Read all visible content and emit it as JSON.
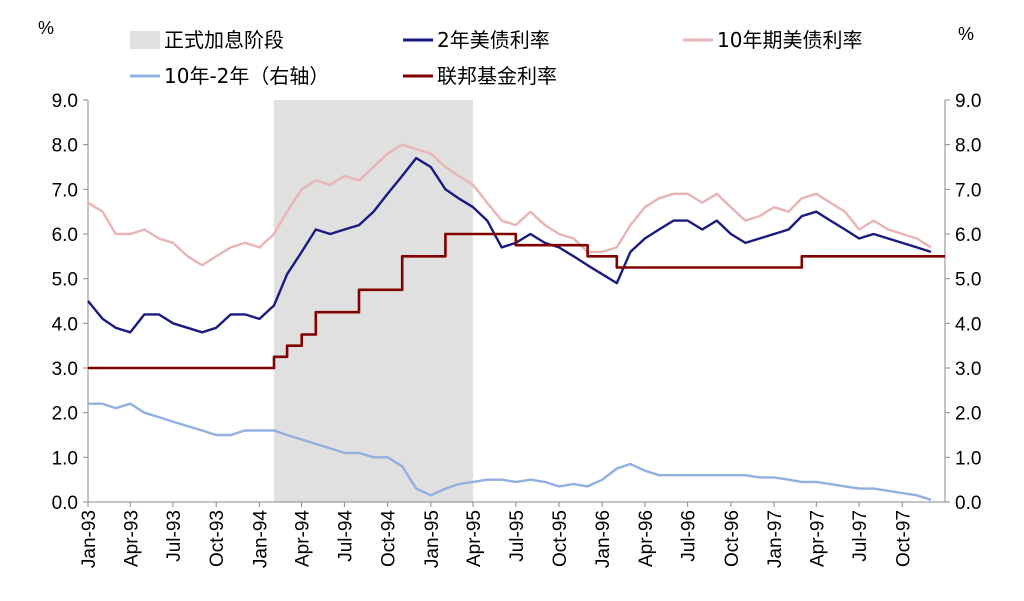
{
  "chart_data": {
    "type": "line",
    "units": {
      "left": "%",
      "right": "%"
    },
    "x_tick_labels": [
      "Jan-93",
      "Apr-93",
      "Jul-93",
      "Oct-93",
      "Jan-94",
      "Apr-94",
      "Jul-94",
      "Oct-94",
      "Jan-95",
      "Apr-95",
      "Jul-95",
      "Oct-95",
      "Jan-96",
      "Apr-96",
      "Jul-96",
      "Oct-96",
      "Jan-97",
      "Apr-97",
      "Jul-97",
      "Oct-97"
    ],
    "x_range": [
      "1993-01",
      "1997-12"
    ],
    "y_left": {
      "min": 0,
      "max": 9,
      "ticks": [
        "0.0",
        "1.0",
        "2.0",
        "3.0",
        "4.0",
        "5.0",
        "6.0",
        "7.0",
        "8.0",
        "9.0"
      ]
    },
    "y_right": {
      "min": 0,
      "max": 9,
      "ticks": [
        "0.0",
        "1.0",
        "2.0",
        "3.0",
        "4.0",
        "5.0",
        "6.0",
        "7.0",
        "8.0",
        "9.0"
      ]
    },
    "grid": false,
    "legend": {
      "placement": "top",
      "items": [
        {
          "name": "正式加息阶段",
          "kind": "band",
          "color": "#e0e0e0"
        },
        {
          "name": "2年美债利率",
          "kind": "line",
          "color": "#1a1a80"
        },
        {
          "name": "10年期美债利率",
          "kind": "line",
          "color": "#e8b4b4"
        },
        {
          "name": "10年-2年（右轴）",
          "kind": "line",
          "color": "#8fb0e0"
        },
        {
          "name": "联邦基金利率",
          "kind": "line",
          "color": "#800000"
        }
      ]
    },
    "shaded_regions": [
      {
        "name": "正式加息阶段",
        "start": "1994-02",
        "end": "1995-04"
      }
    ],
    "series": [
      {
        "name": "10年期美债利率",
        "axis": "left",
        "color": "#e8b4b4",
        "points": [
          [
            "1993-01",
            6.7
          ],
          [
            "1993-02",
            6.5
          ],
          [
            "1993-03",
            6.0
          ],
          [
            "1993-04",
            6.0
          ],
          [
            "1993-05",
            6.1
          ],
          [
            "1993-06",
            5.9
          ],
          [
            "1993-07",
            5.8
          ],
          [
            "1993-08",
            5.5
          ],
          [
            "1993-09",
            5.3
          ],
          [
            "1993-10",
            5.5
          ],
          [
            "1993-11",
            5.7
          ],
          [
            "1993-12",
            5.8
          ],
          [
            "1994-01",
            5.7
          ],
          [
            "1994-02",
            6.0
          ],
          [
            "1994-03",
            6.5
          ],
          [
            "1994-04",
            7.0
          ],
          [
            "1994-05",
            7.2
          ],
          [
            "1994-06",
            7.1
          ],
          [
            "1994-07",
            7.3
          ],
          [
            "1994-08",
            7.2
          ],
          [
            "1994-09",
            7.5
          ],
          [
            "1994-10",
            7.8
          ],
          [
            "1994-11",
            8.0
          ],
          [
            "1994-12",
            7.9
          ],
          [
            "1995-01",
            7.8
          ],
          [
            "1995-02",
            7.5
          ],
          [
            "1995-03",
            7.3
          ],
          [
            "1995-04",
            7.1
          ],
          [
            "1995-05",
            6.7
          ],
          [
            "1995-06",
            6.3
          ],
          [
            "1995-07",
            6.2
          ],
          [
            "1995-08",
            6.5
          ],
          [
            "1995-09",
            6.2
          ],
          [
            "1995-10",
            6.0
          ],
          [
            "1995-11",
            5.9
          ],
          [
            "1995-12",
            5.6
          ],
          [
            "1996-01",
            5.6
          ],
          [
            "1996-02",
            5.7
          ],
          [
            "1996-03",
            6.2
          ],
          [
            "1996-04",
            6.6
          ],
          [
            "1996-05",
            6.8
          ],
          [
            "1996-06",
            6.9
          ],
          [
            "1996-07",
            6.9
          ],
          [
            "1996-08",
            6.7
          ],
          [
            "1996-09",
            6.9
          ],
          [
            "1996-10",
            6.6
          ],
          [
            "1996-11",
            6.3
          ],
          [
            "1996-12",
            6.4
          ],
          [
            "1997-01",
            6.6
          ],
          [
            "1997-02",
            6.5
          ],
          [
            "1997-03",
            6.8
          ],
          [
            "1997-04",
            6.9
          ],
          [
            "1997-05",
            6.7
          ],
          [
            "1997-06",
            6.5
          ],
          [
            "1997-07",
            6.1
          ],
          [
            "1997-08",
            6.3
          ],
          [
            "1997-09",
            6.1
          ],
          [
            "1997-10",
            6.0
          ],
          [
            "1997-11",
            5.9
          ],
          [
            "1997-12",
            5.7
          ]
        ]
      },
      {
        "name": "2年美债利率",
        "axis": "left",
        "color": "#1a1a80",
        "points": [
          [
            "1993-01",
            4.5
          ],
          [
            "1993-02",
            4.1
          ],
          [
            "1993-03",
            3.9
          ],
          [
            "1993-04",
            3.8
          ],
          [
            "1993-05",
            4.2
          ],
          [
            "1993-06",
            4.2
          ],
          [
            "1993-07",
            4.0
          ],
          [
            "1993-08",
            3.9
          ],
          [
            "1993-09",
            3.8
          ],
          [
            "1993-10",
            3.9
          ],
          [
            "1993-11",
            4.2
          ],
          [
            "1993-12",
            4.2
          ],
          [
            "1994-01",
            4.1
          ],
          [
            "1994-02",
            4.4
          ],
          [
            "1994-03",
            5.1
          ],
          [
            "1994-04",
            5.6
          ],
          [
            "1994-05",
            6.1
          ],
          [
            "1994-06",
            6.0
          ],
          [
            "1994-07",
            6.1
          ],
          [
            "1994-08",
            6.2
          ],
          [
            "1994-09",
            6.5
          ],
          [
            "1994-10",
            6.9
          ],
          [
            "1994-11",
            7.3
          ],
          [
            "1994-12",
            7.7
          ],
          [
            "1995-01",
            7.5
          ],
          [
            "1995-02",
            7.0
          ],
          [
            "1995-03",
            6.8
          ],
          [
            "1995-04",
            6.6
          ],
          [
            "1995-05",
            6.3
          ],
          [
            "1995-06",
            5.7
          ],
          [
            "1995-07",
            5.8
          ],
          [
            "1995-08",
            6.0
          ],
          [
            "1995-09",
            5.8
          ],
          [
            "1995-10",
            5.7
          ],
          [
            "1995-11",
            5.5
          ],
          [
            "1995-12",
            5.3
          ],
          [
            "1996-01",
            5.1
          ],
          [
            "1996-02",
            4.9
          ],
          [
            "1996-03",
            5.6
          ],
          [
            "1996-04",
            5.9
          ],
          [
            "1996-05",
            6.1
          ],
          [
            "1996-06",
            6.3
          ],
          [
            "1996-07",
            6.3
          ],
          [
            "1996-08",
            6.1
          ],
          [
            "1996-09",
            6.3
          ],
          [
            "1996-10",
            6.0
          ],
          [
            "1996-11",
            5.8
          ],
          [
            "1996-12",
            5.9
          ],
          [
            "1997-01",
            6.0
          ],
          [
            "1997-02",
            6.1
          ],
          [
            "1997-03",
            6.4
          ],
          [
            "1997-04",
            6.5
          ],
          [
            "1997-05",
            6.3
          ],
          [
            "1997-06",
            6.1
          ],
          [
            "1997-07",
            5.9
          ],
          [
            "1997-08",
            6.0
          ],
          [
            "1997-09",
            5.9
          ],
          [
            "1997-10",
            5.8
          ],
          [
            "1997-11",
            5.7
          ],
          [
            "1997-12",
            5.6
          ]
        ]
      },
      {
        "name": "10年-2年（右轴）",
        "axis": "right",
        "color": "#8fb0e0",
        "points": [
          [
            "1993-01",
            2.2
          ],
          [
            "1993-02",
            2.2
          ],
          [
            "1993-03",
            2.1
          ],
          [
            "1993-04",
            2.2
          ],
          [
            "1993-05",
            2.0
          ],
          [
            "1993-06",
            1.9
          ],
          [
            "1993-07",
            1.8
          ],
          [
            "1993-08",
            1.7
          ],
          [
            "1993-09",
            1.6
          ],
          [
            "1993-10",
            1.5
          ],
          [
            "1993-11",
            1.5
          ],
          [
            "1993-12",
            1.6
          ],
          [
            "1994-01",
            1.6
          ],
          [
            "1994-02",
            1.6
          ],
          [
            "1994-03",
            1.5
          ],
          [
            "1994-04",
            1.4
          ],
          [
            "1994-05",
            1.3
          ],
          [
            "1994-06",
            1.2
          ],
          [
            "1994-07",
            1.1
          ],
          [
            "1994-08",
            1.1
          ],
          [
            "1994-09",
            1.0
          ],
          [
            "1994-10",
            1.0
          ],
          [
            "1994-11",
            0.8
          ],
          [
            "1994-12",
            0.3
          ],
          [
            "1995-01",
            0.15
          ],
          [
            "1995-02",
            0.3
          ],
          [
            "1995-03",
            0.4
          ],
          [
            "1995-04",
            0.45
          ],
          [
            "1995-05",
            0.5
          ],
          [
            "1995-06",
            0.5
          ],
          [
            "1995-07",
            0.45
          ],
          [
            "1995-08",
            0.5
          ],
          [
            "1995-09",
            0.45
          ],
          [
            "1995-10",
            0.35
          ],
          [
            "1995-11",
            0.4
          ],
          [
            "1995-12",
            0.35
          ],
          [
            "1996-01",
            0.5
          ],
          [
            "1996-02",
            0.75
          ],
          [
            "1996-03",
            0.85
          ],
          [
            "1996-04",
            0.7
          ],
          [
            "1996-05",
            0.6
          ],
          [
            "1996-06",
            0.6
          ],
          [
            "1996-07",
            0.6
          ],
          [
            "1996-08",
            0.6
          ],
          [
            "1996-09",
            0.6
          ],
          [
            "1996-10",
            0.6
          ],
          [
            "1996-11",
            0.6
          ],
          [
            "1996-12",
            0.55
          ],
          [
            "1997-01",
            0.55
          ],
          [
            "1997-02",
            0.5
          ],
          [
            "1997-03",
            0.45
          ],
          [
            "1997-04",
            0.45
          ],
          [
            "1997-05",
            0.4
          ],
          [
            "1997-06",
            0.35
          ],
          [
            "1997-07",
            0.3
          ],
          [
            "1997-08",
            0.3
          ],
          [
            "1997-09",
            0.25
          ],
          [
            "1997-10",
            0.2
          ],
          [
            "1997-11",
            0.15
          ],
          [
            "1997-12",
            0.05
          ]
        ]
      },
      {
        "name": "联邦基金利率",
        "axis": "left",
        "color": "#800000",
        "step": true,
        "points": [
          [
            "1993-01",
            3.0
          ],
          [
            "1994-02",
            3.25
          ],
          [
            "1994-03",
            3.5
          ],
          [
            "1994-04",
            3.75
          ],
          [
            "1994-05",
            4.25
          ],
          [
            "1994-08",
            4.75
          ],
          [
            "1994-11",
            5.5
          ],
          [
            "1995-02",
            6.0
          ],
          [
            "1995-07",
            5.75
          ],
          [
            "1995-12",
            5.5
          ],
          [
            "1996-02",
            5.25
          ],
          [
            "1997-03",
            5.5
          ],
          [
            "1997-12",
            5.5
          ]
        ]
      }
    ]
  }
}
